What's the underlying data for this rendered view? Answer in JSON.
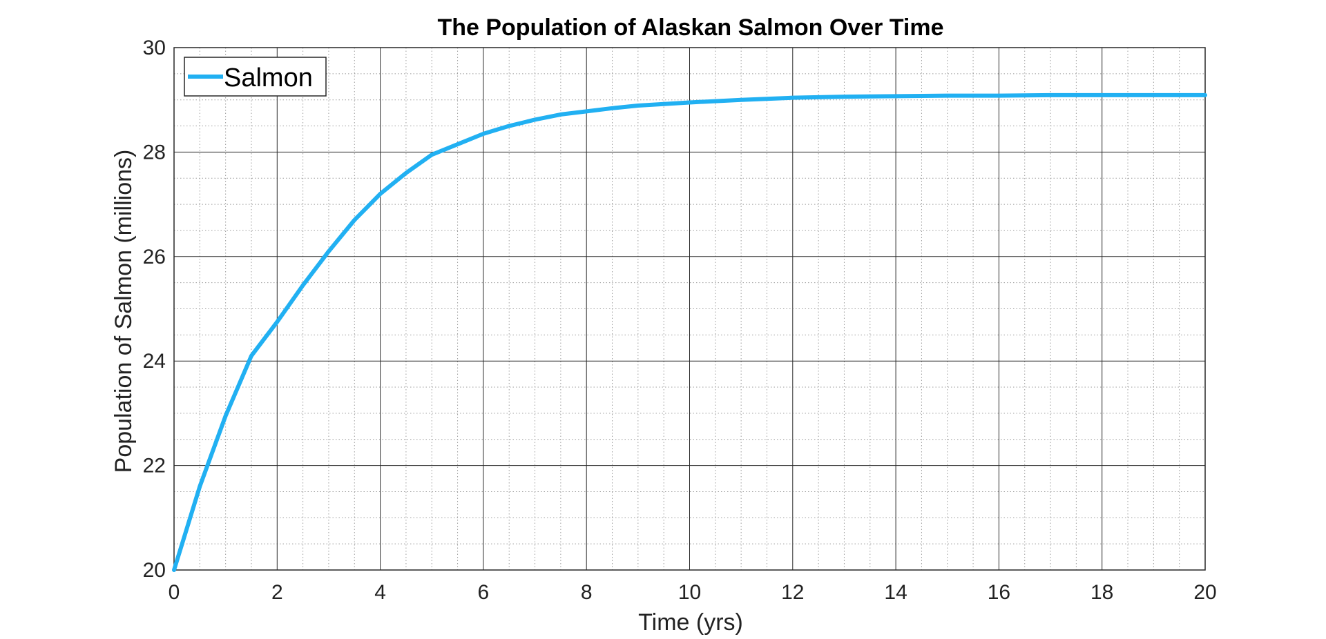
{
  "chart_data": {
    "type": "line",
    "title": "The Population of Alaskan Salmon Over Time",
    "xlabel": "Time (yrs)",
    "ylabel": "Population of Salmon (millions)",
    "xlim": [
      0,
      20
    ],
    "ylim": [
      20,
      30
    ],
    "xticks": [
      0,
      2,
      4,
      6,
      8,
      10,
      12,
      14,
      16,
      18,
      20
    ],
    "yticks": [
      20,
      22,
      24,
      26,
      28,
      30
    ],
    "grid": true,
    "minor_grid": true,
    "legend": {
      "position": "top-left",
      "entries": [
        "Salmon"
      ]
    },
    "series": [
      {
        "name": "Salmon",
        "color": "#21b0f2",
        "x": [
          0,
          0.5,
          1,
          1.5,
          2,
          2.5,
          3,
          3.5,
          4,
          4.5,
          5,
          5.5,
          6,
          6.5,
          7,
          7.5,
          8,
          8.5,
          9,
          9.5,
          10,
          11,
          12,
          13,
          14,
          15,
          16,
          17,
          18,
          19,
          20
        ],
        "y": [
          20.0,
          21.6,
          22.95,
          24.1,
          24.75,
          25.45,
          26.1,
          26.7,
          27.2,
          27.6,
          27.95,
          28.15,
          28.35,
          28.5,
          28.62,
          28.72,
          28.78,
          28.84,
          28.89,
          28.92,
          28.95,
          29.0,
          29.04,
          29.06,
          29.07,
          29.08,
          29.08,
          29.09,
          29.09,
          29.09,
          29.09
        ]
      }
    ]
  }
}
